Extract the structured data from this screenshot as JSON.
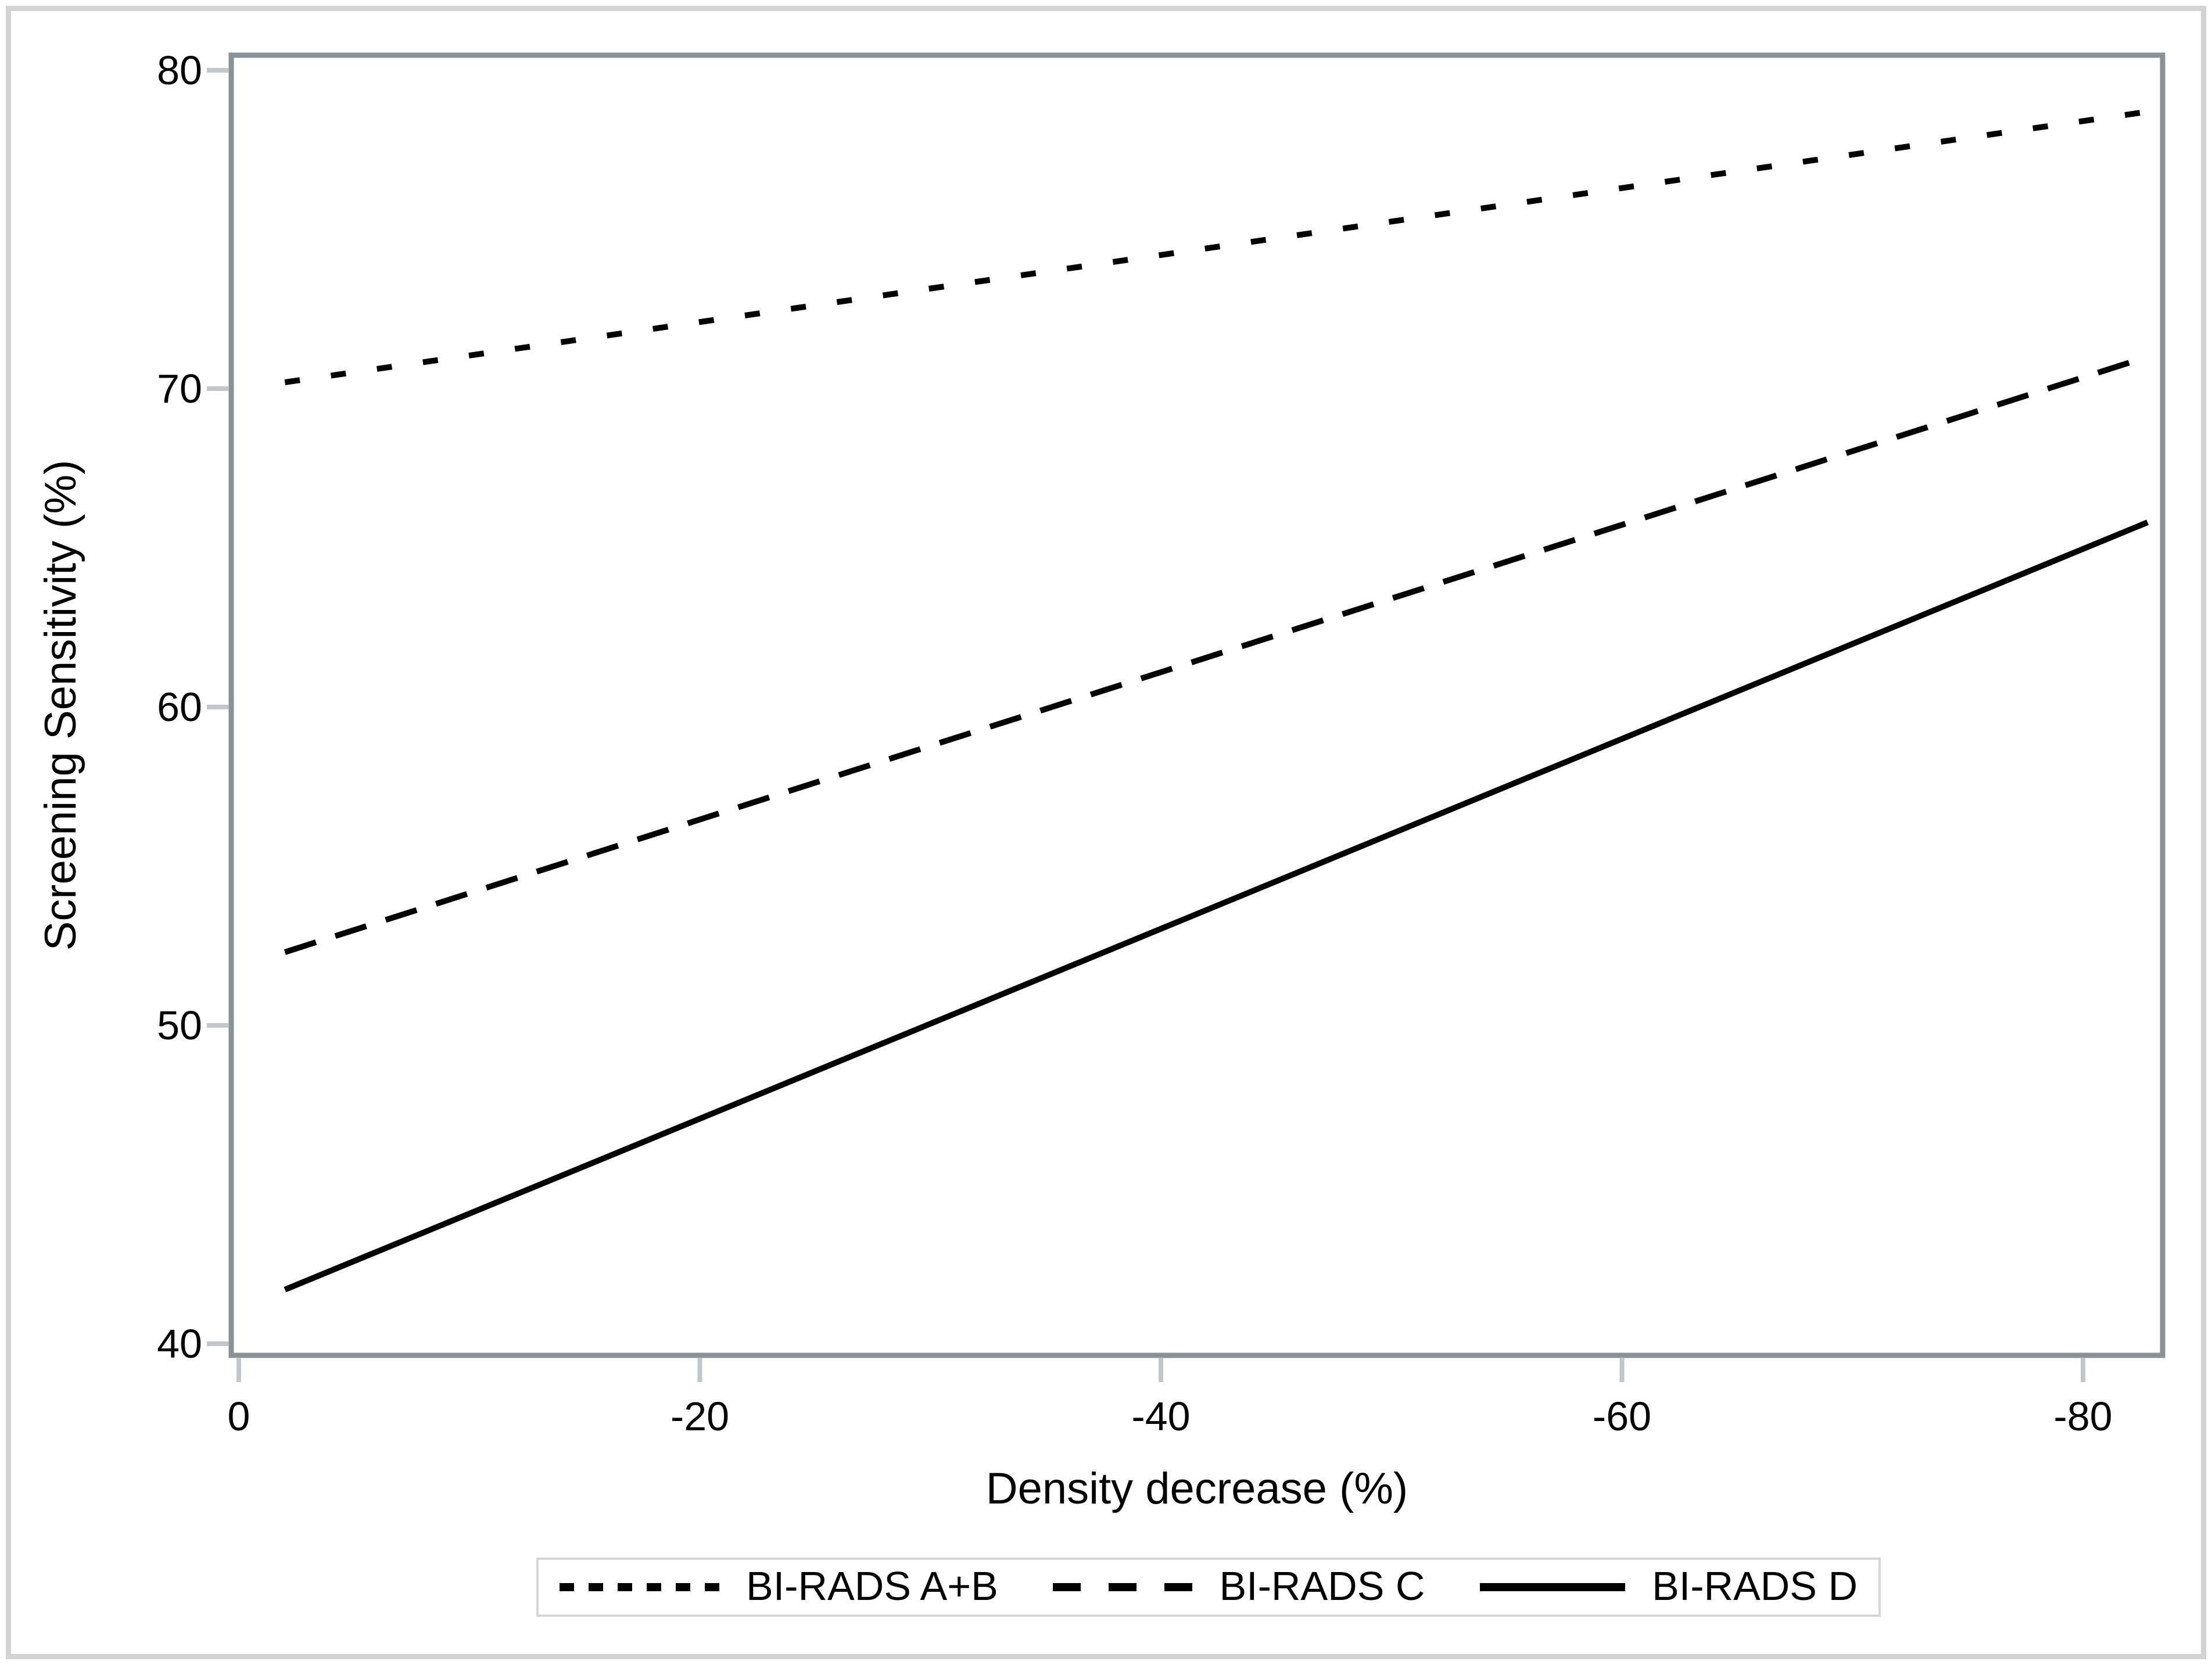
{
  "colors": {
    "background": "#ffffff",
    "axis_frame": "#8a9197",
    "tick": "#c2c7cb",
    "figure_border": "#d3d3d3",
    "legend_border": "#d6d6d6",
    "text": "#000000",
    "series": "#000000"
  },
  "chart_data": {
    "type": "line",
    "title": "",
    "xlabel": "Density decrease (%)",
    "ylabel": "Screening Sensitivity (%)",
    "xlim": [
      0.3,
      -83.5
    ],
    "ylim": [
      39.6,
      80.5
    ],
    "grid": false,
    "legend_position": "bottom-center",
    "x_ticks": [
      {
        "value": 0,
        "label": "0"
      },
      {
        "value": -20,
        "label": "-20"
      },
      {
        "value": -40,
        "label": "-40"
      },
      {
        "value": -60,
        "label": "-60"
      },
      {
        "value": -80,
        "label": "-80"
      }
    ],
    "y_ticks": [
      {
        "value": 40,
        "label": "40"
      },
      {
        "value": 50,
        "label": "50"
      },
      {
        "value": 60,
        "label": "60"
      },
      {
        "value": 70,
        "label": "70"
      },
      {
        "value": 80,
        "label": "80"
      }
    ],
    "series": [
      {
        "name": "BI-RADS A+B",
        "line_style": "dotted",
        "color": "#000000",
        "x": [
          -2,
          -82.8
        ],
        "y": [
          70.2,
          78.7
        ]
      },
      {
        "name": "BI-RADS C",
        "line_style": "dashed",
        "color": "#000000",
        "x": [
          -2,
          -82.8
        ],
        "y": [
          52.3,
          71.0
        ]
      },
      {
        "name": "BI-RADS D",
        "line_style": "solid",
        "color": "#000000",
        "x": [
          -2,
          -82.8
        ],
        "y": [
          41.7,
          65.8
        ]
      }
    ]
  },
  "legend": {
    "items": [
      {
        "label": "BI-RADS A+B",
        "line_style": "dotted"
      },
      {
        "label": "BI-RADS C",
        "line_style": "dashed"
      },
      {
        "label": "BI-RADS D",
        "line_style": "solid"
      }
    ]
  }
}
